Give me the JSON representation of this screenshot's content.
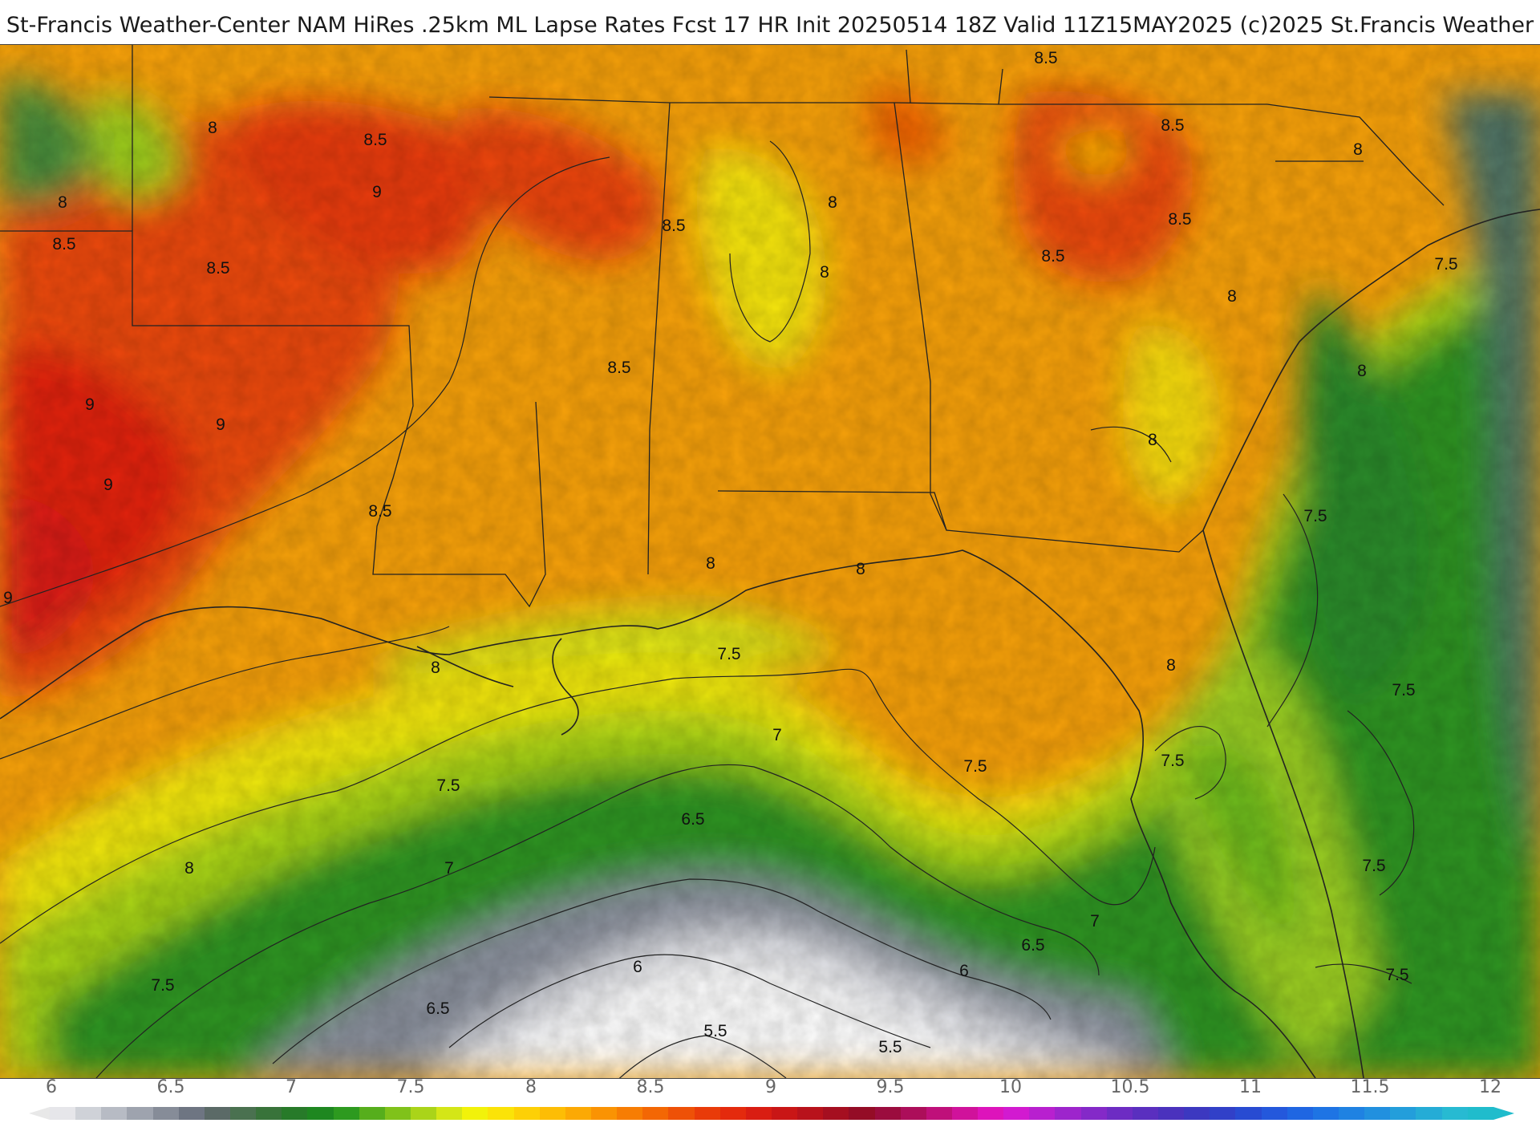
{
  "header": {
    "title": "St-Francis Weather-Center NAM HiRes .25km ML Lapse Rates  Fcst 17 HR Init 20250514 18Z  Valid 11Z15MAY2025    (c)2025 St.Francis Weather"
  },
  "map": {
    "contour_labels": [
      {
        "text": "8.5"
      },
      {
        "text": "8"
      },
      {
        "text": "8.5"
      },
      {
        "text": "9"
      },
      {
        "text": "8"
      },
      {
        "text": "8.5"
      },
      {
        "text": "8.5"
      },
      {
        "text": "9"
      },
      {
        "text": "9"
      },
      {
        "text": "9"
      },
      {
        "text": "9"
      },
      {
        "text": "8.5"
      },
      {
        "text": "8.5"
      },
      {
        "text": "8"
      },
      {
        "text": "8"
      },
      {
        "text": "8.5"
      },
      {
        "text": "8.5"
      },
      {
        "text": "8.5"
      },
      {
        "text": "8.5"
      },
      {
        "text": "8"
      },
      {
        "text": "8"
      },
      {
        "text": "7.5"
      },
      {
        "text": "8"
      },
      {
        "text": "8"
      },
      {
        "text": "7.5"
      },
      {
        "text": "7.5"
      },
      {
        "text": "8"
      },
      {
        "text": "8"
      },
      {
        "text": "8"
      },
      {
        "text": "7.5"
      },
      {
        "text": "7.5"
      },
      {
        "text": "7"
      },
      {
        "text": "7.5"
      },
      {
        "text": "7.5"
      },
      {
        "text": "7.5"
      },
      {
        "text": "6.5"
      },
      {
        "text": "7"
      },
      {
        "text": "8"
      },
      {
        "text": "7.5"
      },
      {
        "text": "7"
      },
      {
        "text": "6.5"
      },
      {
        "text": "6"
      },
      {
        "text": "6"
      },
      {
        "text": "6.5"
      },
      {
        "text": "5.5"
      },
      {
        "text": "5.5"
      },
      {
        "text": "7.5"
      },
      {
        "text": "8"
      }
    ]
  },
  "colorbar": {
    "ticks": [
      "6",
      "6.5",
      "7",
      "7.5",
      "8",
      "8.5",
      "9",
      "9.5",
      "10",
      "10.5",
      "11",
      "11.5",
      "12"
    ],
    "colors": [
      "#e6e6ea",
      "#cfd2d8",
      "#b7bbc4",
      "#9ea3ae",
      "#868c98",
      "#6e7582",
      "#5b6a67",
      "#4a7150",
      "#38733a",
      "#277a29",
      "#1e8720",
      "#2d9a1f",
      "#56ae1c",
      "#80c21a",
      "#aad419",
      "#d4e617",
      "#f2f20a",
      "#fbe308",
      "#fdd006",
      "#fdbd05",
      "#fca904",
      "#fa9303",
      "#f77d03",
      "#f36704",
      "#ee5107",
      "#e93b09",
      "#e42a0d",
      "#d91d12",
      "#c91616",
      "#b8121b",
      "#a50f20",
      "#940c26",
      "#9b0c3e",
      "#ac0e5a",
      "#bf107a",
      "#d0129b",
      "#dd14bb",
      "#d21ad0",
      "#b820cf",
      "#9d25cc",
      "#8429c8",
      "#6d2cc3",
      "#5a2fbf",
      "#4a32bd",
      "#3c38c0",
      "#3140c8",
      "#284bd2",
      "#2458dc",
      "#1f66e2",
      "#1e74e4",
      "#1f82e2",
      "#2190df",
      "#239edb",
      "#25acd6",
      "#27bad2",
      "#20bccc"
    ]
  }
}
